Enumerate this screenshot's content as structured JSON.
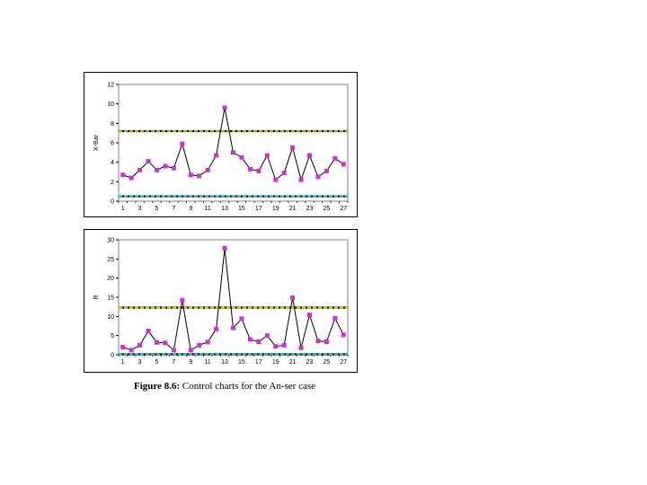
{
  "caption": {
    "label": "Figure 8.6:",
    "text": " Control charts for the An-ser case"
  },
  "colors": {
    "line": "#000000",
    "marker": "#cc33cc",
    "ucl": "#e8e800",
    "lcl": "#20d0d0",
    "plot_border": "#808080"
  },
  "chart_data": [
    {
      "type": "line",
      "ylabel": "X-Bar",
      "ylim": [
        0,
        12
      ],
      "yticks": [
        0,
        2,
        4,
        6,
        8,
        10,
        12
      ],
      "xtick_labels": [
        "1",
        "3",
        "5",
        "7",
        "9",
        "11",
        "13",
        "15",
        "17",
        "19",
        "21",
        "23",
        "25",
        "27"
      ],
      "ucl": 7.2,
      "lcl": 0.5,
      "x": [
        1,
        2,
        3,
        4,
        5,
        6,
        7,
        8,
        9,
        10,
        11,
        12,
        13,
        14,
        15,
        16,
        17,
        18,
        19,
        20,
        21,
        22,
        23,
        24,
        25,
        26,
        27
      ],
      "values": [
        2.7,
        2.4,
        3.2,
        4.1,
        3.2,
        3.6,
        3.4,
        5.9,
        2.7,
        2.6,
        3.2,
        4.7,
        9.6,
        5.0,
        4.5,
        3.3,
        3.1,
        4.7,
        2.2,
        2.9,
        5.5,
        2.2,
        4.7,
        2.5,
        3.1,
        4.4,
        3.8
      ]
    },
    {
      "type": "line",
      "ylabel": "R",
      "ylim": [
        0,
        30
      ],
      "yticks": [
        0,
        5,
        10,
        15,
        20,
        25,
        30
      ],
      "xtick_labels": [
        "1",
        "3",
        "5",
        "7",
        "9",
        "11",
        "13",
        "15",
        "17",
        "19",
        "21",
        "23",
        "25",
        "27"
      ],
      "ucl": 12.3,
      "lcl": 0,
      "x": [
        1,
        2,
        3,
        4,
        5,
        6,
        7,
        8,
        9,
        10,
        11,
        12,
        13,
        14,
        15,
        16,
        17,
        18,
        19,
        20,
        21,
        22,
        23,
        24,
        25,
        26,
        27
      ],
      "values": [
        2,
        1.2,
        2.5,
        6.2,
        3.2,
        3.1,
        1.2,
        14.2,
        1.2,
        2.5,
        3.3,
        6.7,
        27.8,
        7,
        9.4,
        4,
        3.4,
        5,
        2.2,
        2.5,
        14.9,
        1.8,
        10.4,
        3.6,
        3.4,
        9.5,
        5.2
      ]
    }
  ]
}
